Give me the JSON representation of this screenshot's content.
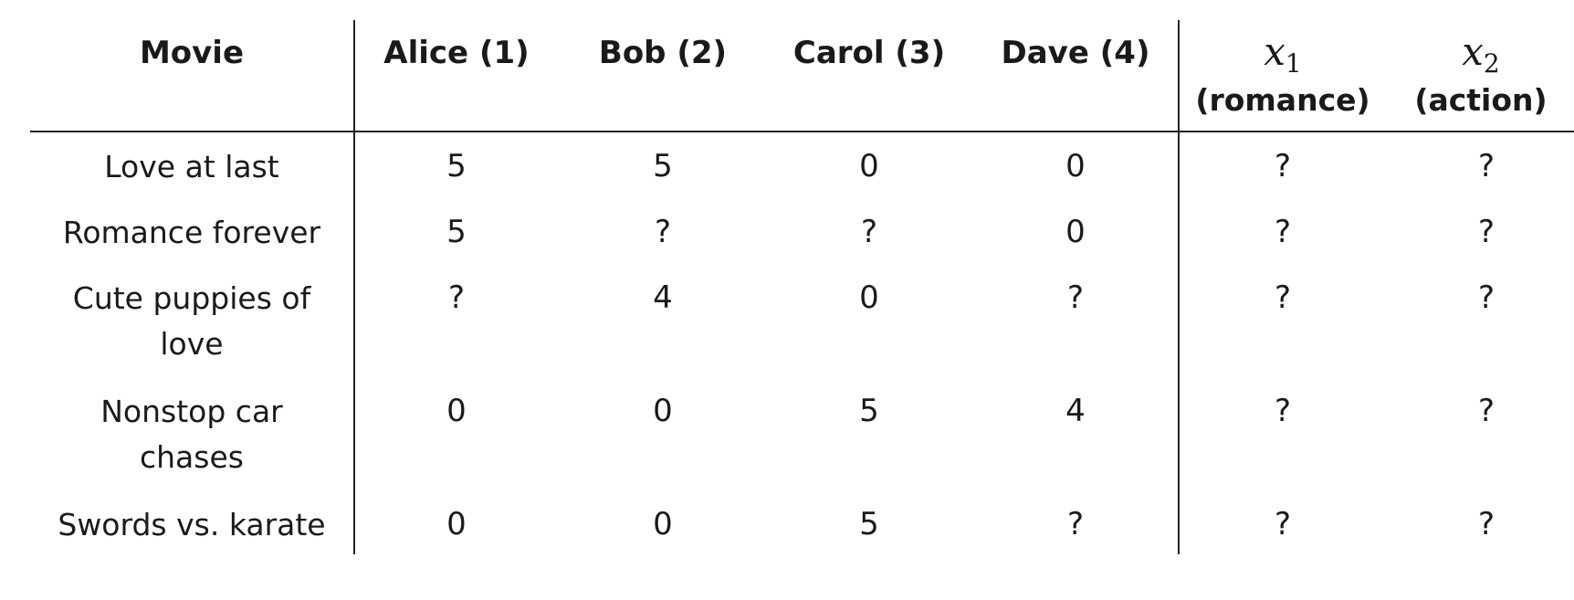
{
  "table": {
    "headers": {
      "movie": "Movie",
      "users": [
        "Alice (1)",
        "Bob (2)",
        "Carol (3)",
        "Dave (4)"
      ],
      "features": [
        {
          "symbol": "x",
          "index": "1",
          "label": "(romance)"
        },
        {
          "symbol": "x",
          "index": "2",
          "label": "(action)"
        }
      ]
    },
    "rows": [
      {
        "movie": "Love at last",
        "ratings": [
          "5",
          "5",
          "0",
          "0"
        ],
        "features": [
          "?",
          "?"
        ]
      },
      {
        "movie": "Romance forever",
        "ratings": [
          "5",
          "?",
          "?",
          "0"
        ],
        "features": [
          "?",
          "?"
        ]
      },
      {
        "movie": "Cute puppies of love",
        "ratings": [
          "?",
          "4",
          "0",
          "?"
        ],
        "features": [
          "?",
          "?"
        ]
      },
      {
        "movie": "Nonstop car chases",
        "ratings": [
          "0",
          "0",
          "5",
          "4"
        ],
        "features": [
          "?",
          "?"
        ]
      },
      {
        "movie": "Swords vs. karate",
        "ratings": [
          "0",
          "0",
          "5",
          "?"
        ],
        "features": [
          "?",
          "?"
        ]
      }
    ]
  }
}
